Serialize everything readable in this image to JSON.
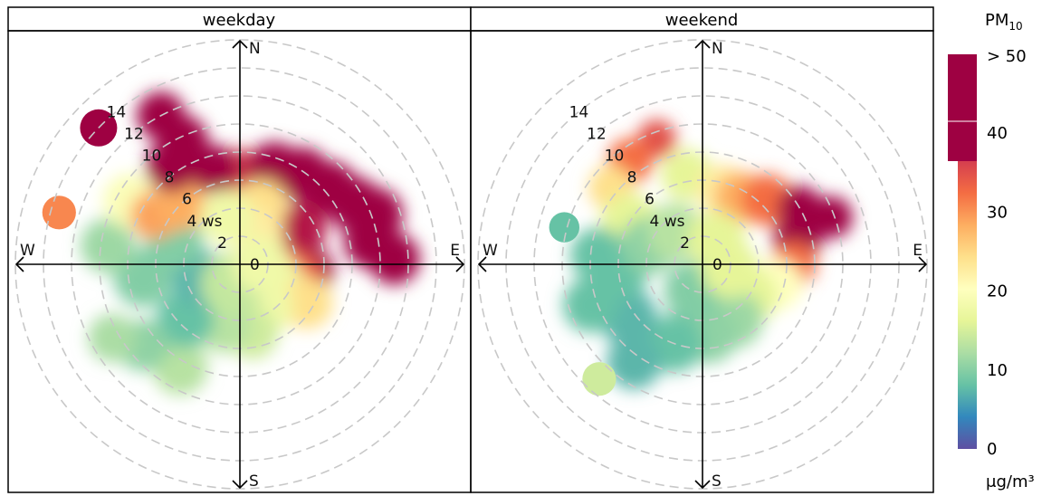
{
  "chart_data": {
    "type": "heatmap",
    "subtype": "polar-plot",
    "panels": [
      {
        "name": "weekday",
        "blobs": [
          {
            "wd": 0,
            "ws": 6.5,
            "size": 1.5,
            "value": 45
          },
          {
            "wd": 20,
            "ws": 7.2,
            "size": 1.7,
            "value": 58
          },
          {
            "wd": 35,
            "ws": 7.8,
            "size": 1.7,
            "value": 60
          },
          {
            "wd": 50,
            "ws": 8.4,
            "size": 1.7,
            "value": 60
          },
          {
            "wd": 62,
            "ws": 9.2,
            "size": 1.7,
            "value": 60
          },
          {
            "wd": 70,
            "ws": 10.3,
            "size": 1.7,
            "value": 60
          },
          {
            "wd": 80,
            "ws": 9.5,
            "size": 1.7,
            "value": 60
          },
          {
            "wd": 88,
            "ws": 11.0,
            "size": 1.6,
            "value": 60
          },
          {
            "wd": 60,
            "ws": 5.0,
            "size": 1.6,
            "value": 48
          },
          {
            "wd": 95,
            "ws": 5.0,
            "size": 1.5,
            "value": 55
          },
          {
            "wd": 105,
            "ws": 4.0,
            "size": 1.8,
            "value": 42
          },
          {
            "wd": 20,
            "ws": 4.5,
            "size": 1.6,
            "value": 30
          },
          {
            "wd": 30,
            "ws": 2.5,
            "size": 1.6,
            "value": 28
          },
          {
            "wd": 120,
            "ws": 3.0,
            "size": 1.8,
            "value": 22
          },
          {
            "wd": 120,
            "ws": 5.5,
            "size": 1.6,
            "value": 30
          },
          {
            "wd": 150,
            "ws": 3.5,
            "size": 1.8,
            "value": 22
          },
          {
            "wd": 170,
            "ws": 5.0,
            "size": 1.6,
            "value": 18
          },
          {
            "wd": 195,
            "ws": 4.5,
            "size": 1.7,
            "value": 16
          },
          {
            "wd": 210,
            "ws": 8.5,
            "size": 1.7,
            "value": 16
          },
          {
            "wd": 225,
            "ws": 5.5,
            "size": 1.8,
            "value": 10
          },
          {
            "wd": 230,
            "ws": 9.0,
            "size": 1.6,
            "value": 13
          },
          {
            "wd": 240,
            "ws": 10.5,
            "size": 1.5,
            "value": 15
          },
          {
            "wd": 250,
            "ws": 3.0,
            "size": 1.8,
            "value": 9
          },
          {
            "wd": 262,
            "ws": 7.0,
            "size": 1.8,
            "value": 12
          },
          {
            "wd": 278,
            "ws": 9.5,
            "size": 1.7,
            "value": 14
          },
          {
            "wd": 290,
            "ws": 5.0,
            "size": 1.8,
            "value": 12
          },
          {
            "wd": 300,
            "ws": 9.0,
            "size": 1.7,
            "value": 24
          },
          {
            "wd": 300,
            "ws": 7.0,
            "size": 1.5,
            "value": 36
          },
          {
            "wd": 315,
            "ws": 6.0,
            "size": 1.6,
            "value": 35
          },
          {
            "wd": 325,
            "ws": 8.5,
            "size": 1.6,
            "value": 55
          },
          {
            "wd": 335,
            "ws": 9.7,
            "size": 1.6,
            "value": 60
          },
          {
            "wd": 332,
            "ws": 12.0,
            "size": 1.5,
            "value": 60
          },
          {
            "wd": 345,
            "ws": 7.0,
            "size": 1.5,
            "value": 50
          },
          {
            "wd": 345,
            "ws": 3.5,
            "size": 1.7,
            "value": 22
          },
          {
            "wd": 200,
            "ws": 1.5,
            "size": 2.0,
            "value": 17
          },
          {
            "wd": 90,
            "ws": 1.5,
            "size": 1.8,
            "value": 22
          }
        ],
        "islands": [
          {
            "wd": 314,
            "ws": 14.0,
            "size": 1.1,
            "value": 60
          },
          {
            "wd": 286,
            "ws": 13.4,
            "size": 1.0,
            "value": 38
          }
        ]
      },
      {
        "name": "weekend",
        "blobs": [
          {
            "wd": 340,
            "ws": 9.5,
            "size": 1.2,
            "value": 43
          },
          {
            "wd": 325,
            "ws": 9.0,
            "size": 1.4,
            "value": 40
          },
          {
            "wd": 310,
            "ws": 8.5,
            "size": 1.4,
            "value": 30
          },
          {
            "wd": 300,
            "ws": 6.0,
            "size": 1.8,
            "value": 20
          },
          {
            "wd": 350,
            "ws": 6.5,
            "size": 1.6,
            "value": 20
          },
          {
            "wd": 15,
            "ws": 5.5,
            "size": 1.6,
            "value": 28
          },
          {
            "wd": 30,
            "ws": 5.5,
            "size": 1.6,
            "value": 35
          },
          {
            "wd": 45,
            "ws": 6.5,
            "size": 1.6,
            "value": 40
          },
          {
            "wd": 60,
            "ws": 8.0,
            "size": 1.4,
            "value": 50
          },
          {
            "wd": 70,
            "ws": 9.8,
            "size": 1.3,
            "value": 60
          },
          {
            "wd": 75,
            "ws": 7.0,
            "size": 1.5,
            "value": 50
          },
          {
            "wd": 90,
            "ws": 6.5,
            "size": 1.4,
            "value": 40
          },
          {
            "wd": 105,
            "ws": 5.5,
            "size": 1.6,
            "value": 25
          },
          {
            "wd": 125,
            "ws": 4.0,
            "size": 1.8,
            "value": 20
          },
          {
            "wd": 150,
            "ws": 4.5,
            "size": 1.8,
            "value": 14
          },
          {
            "wd": 175,
            "ws": 5.0,
            "size": 1.8,
            "value": 13
          },
          {
            "wd": 200,
            "ws": 6.0,
            "size": 1.8,
            "value": 10
          },
          {
            "wd": 215,
            "ws": 8.5,
            "size": 1.7,
            "value": 9
          },
          {
            "wd": 235,
            "ws": 6.5,
            "size": 1.8,
            "value": 9
          },
          {
            "wd": 250,
            "ws": 8.5,
            "size": 1.7,
            "value": 10
          },
          {
            "wd": 265,
            "ws": 6.0,
            "size": 1.8,
            "value": 10
          },
          {
            "wd": 275,
            "ws": 7.5,
            "size": 1.7,
            "value": 10
          },
          {
            "wd": 290,
            "ws": 4.0,
            "size": 1.8,
            "value": 13
          },
          {
            "wd": 320,
            "ws": 3.0,
            "size": 1.8,
            "value": 16
          },
          {
            "wd": 200,
            "ws": 2.0,
            "size": 1.8,
            "value": 12
          },
          {
            "wd": 30,
            "ws": 2.0,
            "size": 1.8,
            "value": 20
          },
          {
            "wd": 100,
            "ws": 2.0,
            "size": 1.8,
            "value": 20
          }
        ],
        "islands": [
          {
            "wd": 285,
            "ws": 10.2,
            "size": 0.9,
            "value": 10
          },
          {
            "wd": 222,
            "ws": 11.0,
            "size": 1.0,
            "value": 18
          }
        ]
      }
    ],
    "radial_ticks": [
      "2",
      "4 ws",
      "6",
      "8",
      "10",
      "12",
      "14"
    ],
    "center_label": "0",
    "directions": [
      "N",
      "E",
      "S",
      "W"
    ],
    "radial_range": [
      0,
      16
    ],
    "colorbar": {
      "title": "PM",
      "title_subscript": "10",
      "unit": "μg/m³",
      "ticks": [
        "0",
        "10",
        "20",
        "30",
        "40",
        "> 50"
      ],
      "tick_values": [
        0,
        10,
        20,
        30,
        40,
        50
      ],
      "range": [
        0,
        50
      ],
      "overflow_value": 60,
      "palette": [
        "#5E4FA2",
        "#3288BD",
        "#66C2A5",
        "#ABDDA4",
        "#E6F598",
        "#FFFFBF",
        "#FEE08B",
        "#FDAE61",
        "#F46D43",
        "#D53E4F",
        "#9E0142"
      ]
    }
  }
}
